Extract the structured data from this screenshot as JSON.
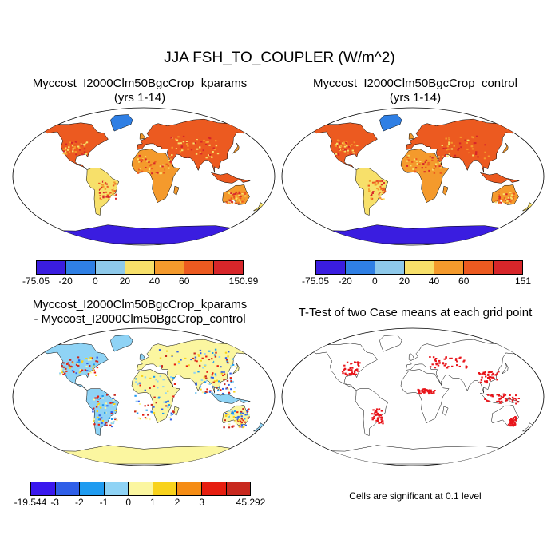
{
  "title": "JJA FSH_TO_COUPLER (W/m^2)",
  "panels": [
    {
      "line1": "Myccost_I2000Clm50BgcCrop_kparams",
      "line2": "(yrs 1-14)"
    },
    {
      "line1": "Myccost_I2000Clm50BgcCrop_control",
      "line2": "(yrs 1-14)"
    },
    {
      "line1": "Myccost_I2000Clm50BgcCrop_kparams",
      "line2": "- Myccost_I2000Clm50BgcCrop_control"
    },
    {
      "line1": "T-Test of two Case means at each grid point"
    }
  ],
  "colorbars": [
    {
      "labels": [
        "-75.05",
        "-20",
        "0",
        "20",
        "40",
        "60",
        "150.99"
      ],
      "colors": [
        "#3a1de0",
        "#2f7fe4",
        "#8ec9ea",
        "#f7e06a",
        "#f49a2c",
        "#ec5a20",
        "#d7262a"
      ]
    },
    {
      "labels": [
        "-75.05",
        "-20",
        "0",
        "20",
        "40",
        "60",
        "151"
      ],
      "colors": [
        "#3a1de0",
        "#2f7fe4",
        "#8ec9ea",
        "#f7e06a",
        "#f49a2c",
        "#ec5a20",
        "#d7262a"
      ]
    },
    {
      "labels": [
        "-19.544",
        "-3",
        "-2",
        "-1",
        "0",
        "1",
        "2",
        "3",
        "45.292"
      ],
      "colors": [
        "#3a18ee",
        "#2f5fe8",
        "#1f9bf0",
        "#8fd3f5",
        "#fbf6a0",
        "#f8d21c",
        "#f58c14",
        "#e61e10",
        "#c8281e"
      ]
    }
  ],
  "footnote": "Cells are significant at 0.1 level",
  "significance_color": "#e8141a"
}
